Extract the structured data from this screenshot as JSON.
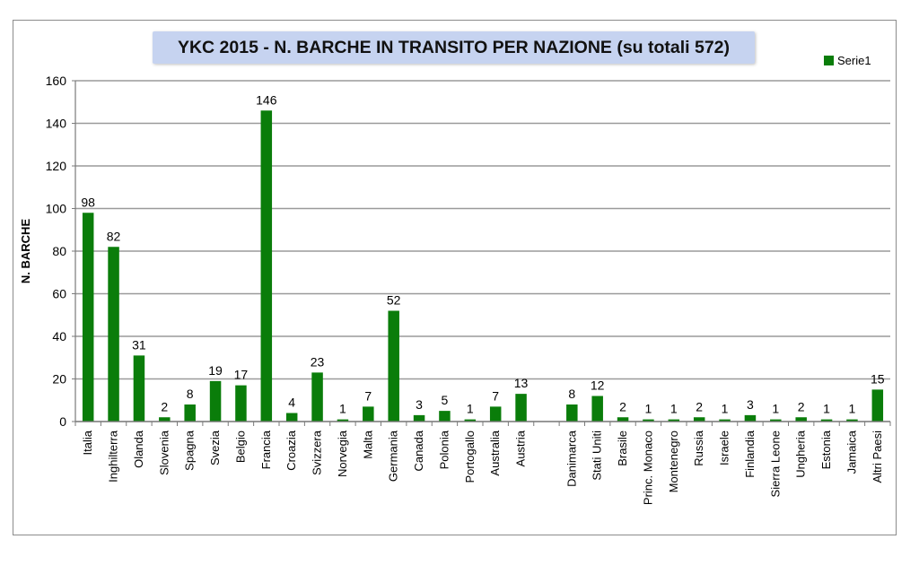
{
  "chart_data": {
    "type": "bar",
    "title": "YKC 2015 - N. BARCHE IN TRANSITO PER NAZIONE (su totali 572)",
    "ylabel": "N. BARCHE",
    "xlabel": "",
    "ylim": [
      0,
      160
    ],
    "yticks": [
      "0",
      "20",
      "40",
      "60",
      "80",
      "100",
      "120",
      "140",
      "160"
    ],
    "grid": true,
    "legend_position": "top-right",
    "categories": [
      "Italia",
      "Inghilterra",
      "Olanda",
      "Slovenia",
      "Spagna",
      "Svezia",
      "Belgio",
      "Francia",
      "Croazia",
      "Svizzera",
      "Norvegia",
      "Malta",
      "Germania",
      "Canada",
      "Polonia",
      "Portogallo",
      "Australia",
      "Austria",
      "",
      "Danimarca",
      "Stati Uniti",
      "Brasile",
      "Princ. Monaco",
      "Montenegro",
      "Russia",
      "Israele",
      "Finlandia",
      "Sierra Leone",
      "Ungheria",
      "Estonia",
      "Jamaica",
      "Altri Paesi"
    ],
    "series": [
      {
        "name": "Serie1",
        "color": "#0a7d0a",
        "values": [
          98,
          82,
          31,
          2,
          8,
          19,
          17,
          146,
          4,
          23,
          1,
          7,
          52,
          3,
          5,
          1,
          7,
          13,
          null,
          8,
          12,
          2,
          1,
          1,
          2,
          1,
          3,
          1,
          2,
          1,
          1,
          15
        ]
      }
    ]
  }
}
